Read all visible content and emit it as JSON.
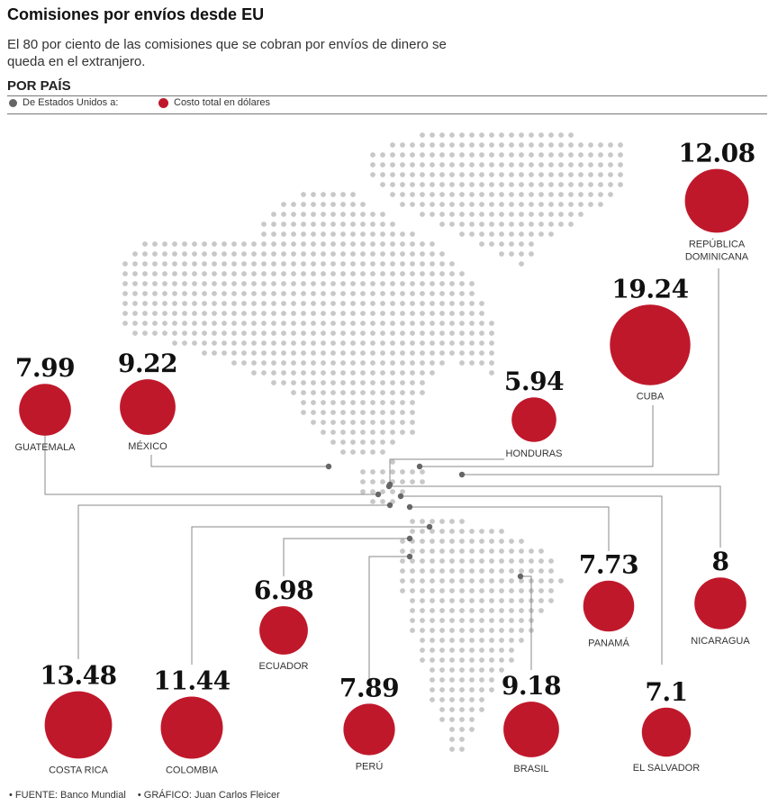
{
  "header": {
    "title": "Comisiones por envíos desde EU",
    "subtitle": "El 80 por ciento de las comisiones que se cobran por envíos de dinero se queda en el extranjero.",
    "section": "POR PAÍS"
  },
  "legend": {
    "origin": "De Estados Unidos a:",
    "cost": "Costo total en dólares"
  },
  "colors": {
    "bubble": "#c0182b",
    "dot_map": "#c8c8c8",
    "leader": "#888888",
    "origin_dot": "#666666"
  },
  "chart_data": {
    "type": "bubble-map",
    "unit": "dólares",
    "points": [
      {
        "country": "GUATEMALA",
        "value": 7.99
      },
      {
        "country": "MÉXICO",
        "value": 9.22
      },
      {
        "country": "HONDURAS",
        "value": 5.94
      },
      {
        "country": "CUBA",
        "value": 19.24
      },
      {
        "country": "REPÚBLICA DOMINICANA",
        "value": 12.08
      },
      {
        "country": "ECUADOR",
        "value": 6.98
      },
      {
        "country": "PANAMÁ",
        "value": 7.73
      },
      {
        "country": "NICARAGUA",
        "value": 8.0
      },
      {
        "country": "COSTA RICA",
        "value": 13.48
      },
      {
        "country": "COLOMBIA",
        "value": 11.44
      },
      {
        "country": "PERÚ",
        "value": 7.89
      },
      {
        "country": "BRASIL",
        "value": 9.18
      },
      {
        "country": "EL SALVADOR",
        "value": 7.1
      }
    ]
  },
  "footer": {
    "source": "• FUENTE: Banco Mundial",
    "credit": "• GRÁFICO: Juan Carlos Fleicer"
  }
}
